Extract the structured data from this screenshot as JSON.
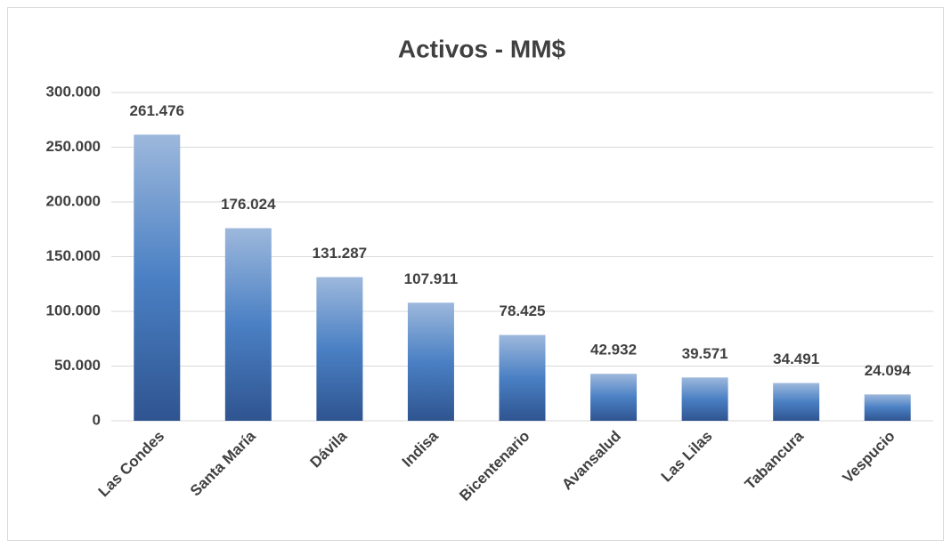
{
  "chart_data": {
    "type": "bar",
    "title": "Activos - MM$",
    "categories": [
      "Las Condes",
      "Santa María",
      "Dávila",
      "Indisa",
      "Bicentenario",
      "Avansalud",
      "Las Lilas",
      "Tabancura",
      "Vespucio"
    ],
    "values": [
      261476,
      176024,
      131287,
      107911,
      78425,
      42932,
      39571,
      34491,
      24094
    ],
    "value_labels": [
      "261.476",
      "176.024",
      "131.287",
      "107.911",
      "78.425",
      "42.932",
      "39.571",
      "34.491",
      "24.094"
    ],
    "ylim": [
      0,
      300000
    ],
    "yticks": [
      0,
      {
        "value": 50000,
        "label": "50.000"
      },
      {
        "value": 100000,
        "label": "100.000"
      },
      {
        "value": 150000,
        "label": "150.000"
      },
      {
        "value": 200000,
        "label": "200.000"
      },
      {
        "value": 250000,
        "label": "250.000"
      },
      {
        "value": 300000,
        "label": "300.000"
      }
    ],
    "grid": true
  }
}
